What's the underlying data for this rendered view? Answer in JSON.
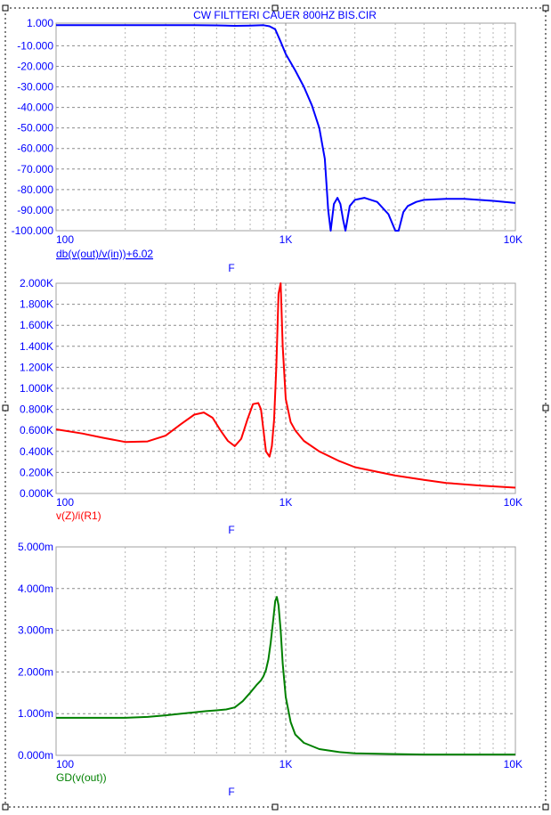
{
  "chart_data": [
    {
      "type": "line",
      "title": "CW FILTTERI CAUER 800HZ BIS.CIR",
      "xscale": "log",
      "xlim": [
        100,
        10000
      ],
      "xticks": [
        100,
        1000,
        10000
      ],
      "xtick_labels": [
        "100",
        "1K",
        "10K"
      ],
      "xlabel": "F",
      "ylabel": "db(v(out)/v(in))+6.02",
      "ylim": [
        -100,
        1
      ],
      "yticks": [
        1,
        -10,
        -20,
        -30,
        -40,
        -50,
        -60,
        -70,
        -80,
        -90,
        -100
      ],
      "ytick_labels": [
        "1.000",
        "-10.000",
        "-20.000",
        "-30.000",
        "-40.000",
        "-50.000",
        "-60.000",
        "-70.000",
        "-80.000",
        "-90.000",
        "-100.000"
      ],
      "grid": true,
      "color": "#0000ff",
      "series": [
        {
          "x": [
            100,
            200,
            300,
            400,
            500,
            600,
            700,
            800,
            850,
            900,
            950,
            1000,
            1100,
            1200,
            1300,
            1400,
            1480,
            1530,
            1570,
            1620,
            1680,
            1730,
            1780,
            1820,
            1900,
            2000,
            2200,
            2500,
            2800,
            3000,
            3100,
            3250,
            3400,
            3700,
            4000,
            5000,
            6000,
            8000,
            10000
          ],
          "y": [
            0,
            0,
            0,
            0,
            -0.1,
            -0.3,
            -0.2,
            0,
            -0.5,
            -2,
            -8,
            -14,
            -22,
            -30,
            -39,
            -50,
            -65,
            -90,
            -100,
            -87,
            -84,
            -87,
            -95,
            -100,
            -88,
            -85,
            -84,
            -86,
            -92,
            -100,
            -100,
            -91,
            -88,
            -86,
            -85,
            -84.5,
            -84.5,
            -85.5,
            -86.5
          ]
        }
      ]
    },
    {
      "type": "line",
      "xscale": "log",
      "xlim": [
        100,
        10000
      ],
      "xticks": [
        100,
        1000,
        10000
      ],
      "xtick_labels": [
        "100",
        "1K",
        "10K"
      ],
      "xlabel": "F",
      "ylabel": "v(Z)/i(R1)",
      "ylim": [
        0,
        2000
      ],
      "yticks": [
        0,
        200,
        400,
        600,
        800,
        1000,
        1200,
        1400,
        1600,
        1800,
        2000
      ],
      "ytick_labels": [
        "0.000K",
        "0.200K",
        "0.400K",
        "0.600K",
        "0.800K",
        "1.000K",
        "1.200K",
        "1.400K",
        "1.600K",
        "1.800K",
        "2.000K"
      ],
      "grid": true,
      "color": "#ff0000",
      "series": [
        {
          "x": [
            100,
            130,
            160,
            200,
            250,
            300,
            350,
            400,
            440,
            480,
            520,
            560,
            600,
            640,
            680,
            720,
            760,
            780,
            800,
            820,
            850,
            870,
            890,
            910,
            930,
            950,
            970,
            1000,
            1050,
            1100,
            1200,
            1400,
            1700,
            2000,
            3000,
            4000,
            5000,
            7000,
            10000
          ],
          "y": [
            610,
            570,
            530,
            490,
            495,
            550,
            660,
            750,
            770,
            720,
            600,
            500,
            450,
            520,
            700,
            850,
            860,
            800,
            600,
            400,
            350,
            450,
            700,
            1200,
            1900,
            2000,
            1400,
            900,
            680,
            600,
            500,
            400,
            310,
            250,
            170,
            130,
            100,
            75,
            55
          ]
        }
      ]
    },
    {
      "type": "line",
      "xscale": "log",
      "xlim": [
        100,
        10000
      ],
      "xticks": [
        100,
        1000,
        10000
      ],
      "xtick_labels": [
        "100",
        "1K",
        "10K"
      ],
      "xlabel": "F",
      "ylabel": "GD(v(out))",
      "ylim": [
        0,
        5
      ],
      "yticks": [
        0,
        1,
        2,
        3,
        4,
        5
      ],
      "ytick_labels": [
        "0.000m",
        "1.000m",
        "2.000m",
        "3.000m",
        "4.000m",
        "5.000m"
      ],
      "grid": true,
      "color": "#008000",
      "series": [
        {
          "x": [
            100,
            150,
            200,
            250,
            300,
            350,
            400,
            450,
            500,
            550,
            600,
            650,
            700,
            750,
            780,
            800,
            820,
            840,
            860,
            880,
            900,
            915,
            930,
            950,
            970,
            1000,
            1050,
            1100,
            1200,
            1400,
            1700,
            2000,
            3000,
            4000,
            10000
          ],
          "y": [
            0.9,
            0.9,
            0.9,
            0.92,
            0.96,
            1.0,
            1.03,
            1.06,
            1.08,
            1.1,
            1.15,
            1.3,
            1.5,
            1.7,
            1.8,
            1.9,
            2.05,
            2.3,
            2.7,
            3.2,
            3.7,
            3.8,
            3.6,
            3.0,
            2.2,
            1.4,
            0.8,
            0.5,
            0.3,
            0.15,
            0.08,
            0.05,
            0.03,
            0.02,
            0.02
          ]
        }
      ]
    }
  ]
}
